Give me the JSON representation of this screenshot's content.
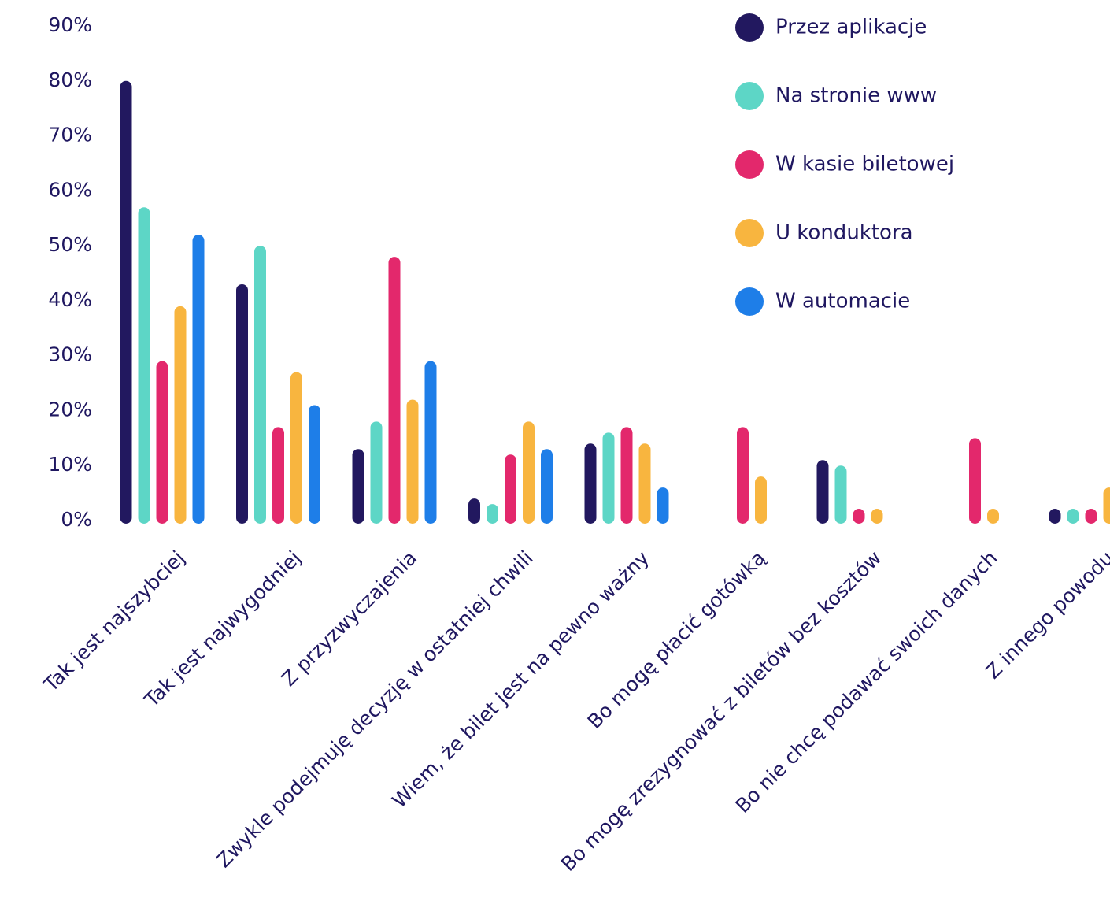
{
  "chart_data": {
    "type": "bar",
    "title": "",
    "xlabel": "",
    "ylabel": "",
    "ylim": [
      0,
      90
    ],
    "yticks": [
      "0%",
      "10%",
      "20%",
      "30%",
      "40%",
      "50%",
      "60%",
      "70%",
      "80%",
      "90%"
    ],
    "grid": false,
    "legend_position": "top-right",
    "categories": [
      "Tak jest najszybciej",
      "Tak jest najwygodniej",
      "Z przyzwyczajenia",
      "Zwykle podejmuję decyzję w ostatniej chwili",
      "Wiem, że bilet jest na pewno ważny",
      "Bo mogę płacić gotówką",
      "Bo mogę zrezygnować z biletów bez kosztów",
      "Bo nie chcę podawać swoich danych",
      "Z innego powodu"
    ],
    "series": [
      {
        "name": "Przez aplikacje",
        "color": "#22185f",
        "values": [
          80,
          43,
          13,
          4,
          14,
          null,
          11,
          null,
          0
        ]
      },
      {
        "name": "Na stronie www",
        "color": "#5dd6c6",
        "values": [
          57,
          50,
          18,
          3,
          16,
          null,
          10,
          null,
          0
        ]
      },
      {
        "name": "W kasie biletowej",
        "color": "#e3286c",
        "values": [
          29,
          17,
          48,
          12,
          17,
          17,
          2,
          15,
          0
        ]
      },
      {
        "name": "U konduktora",
        "color": "#f8b53f",
        "values": [
          39,
          27,
          22,
          18,
          14,
          8,
          0.5,
          0.5,
          6
        ]
      },
      {
        "name": "W automacie",
        "color": "#1e7ee8",
        "values": [
          52,
          21,
          29,
          13,
          6,
          null,
          null,
          null,
          null
        ]
      }
    ]
  }
}
